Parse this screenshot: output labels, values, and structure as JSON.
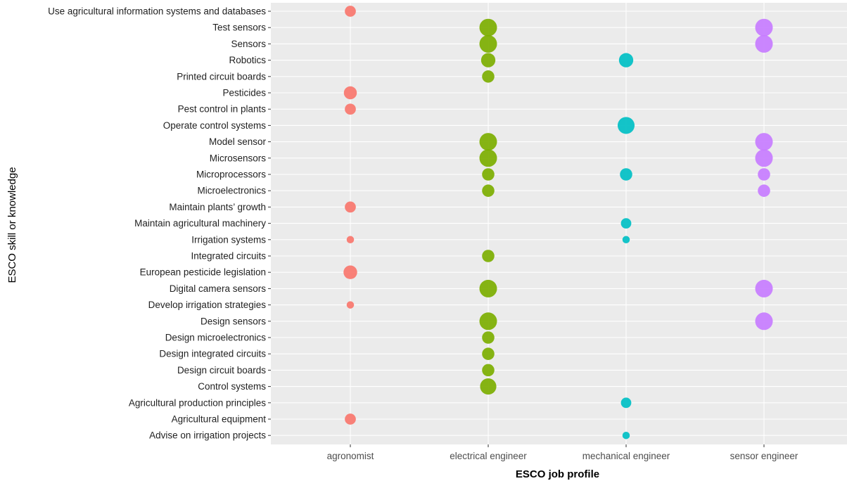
{
  "chart_data": {
    "type": "scatter",
    "title": "",
    "xlabel": "ESCO job profile",
    "ylabel": "ESCO skill or knowledge",
    "grid": true,
    "x_categories": [
      "agronomist",
      "electrical engineer",
      "mechanical engineer",
      "sensor engineer"
    ],
    "y_categories": [
      "Use agricultural information systems and databases",
      "Test sensors",
      "Sensors",
      "Robotics",
      "Printed circuit boards",
      "Pesticides",
      "Pest control in plants",
      "Operate control systems",
      "Model sensor",
      "Microsensors",
      "Microprocessors",
      "Microelectronics",
      "Maintain plants’ growth",
      "Maintain agricultural machinery",
      "Irrigation systems",
      "Integrated circuits",
      "European pesticide legislation",
      "Digital camera sensors",
      "Develop irrigation strategies",
      "Design sensors",
      "Design microelectronics",
      "Design integrated circuits",
      "Design circuit boards",
      "Control systems",
      "Agricultural production principles",
      "Agricultural equipment",
      "Advise on irrigation projects"
    ],
    "series_colors": {
      "agronomist": "#F8766D",
      "electrical engineer": "#7CAE00",
      "mechanical engineer": "#00BFC4",
      "sensor engineer": "#C77CFF"
    },
    "points": [
      {
        "y": "Use agricultural information systems and databases",
        "x": "agronomist",
        "size": 0.5
      },
      {
        "y": "Test sensors",
        "x": "electrical engineer",
        "size": 1.0
      },
      {
        "y": "Test sensors",
        "x": "sensor engineer",
        "size": 1.0
      },
      {
        "y": "Sensors",
        "x": "electrical engineer",
        "size": 1.0
      },
      {
        "y": "Sensors",
        "x": "sensor engineer",
        "size": 1.0
      },
      {
        "y": "Robotics",
        "x": "electrical engineer",
        "size": 0.75
      },
      {
        "y": "Robotics",
        "x": "mechanical engineer",
        "size": 0.75
      },
      {
        "y": "Printed circuit boards",
        "x": "electrical engineer",
        "size": 0.6
      },
      {
        "y": "Pesticides",
        "x": "agronomist",
        "size": 0.65
      },
      {
        "y": "Pest control in plants",
        "x": "agronomist",
        "size": 0.5
      },
      {
        "y": "Operate control systems",
        "x": "mechanical engineer",
        "size": 0.95
      },
      {
        "y": "Model sensor",
        "x": "electrical engineer",
        "size": 1.0
      },
      {
        "y": "Model sensor",
        "x": "sensor engineer",
        "size": 1.0
      },
      {
        "y": "Microsensors",
        "x": "electrical engineer",
        "size": 1.0
      },
      {
        "y": "Microsensors",
        "x": "sensor engineer",
        "size": 1.0
      },
      {
        "y": "Microprocessors",
        "x": "electrical engineer",
        "size": 0.6
      },
      {
        "y": "Microprocessors",
        "x": "mechanical engineer",
        "size": 0.6
      },
      {
        "y": "Microprocessors",
        "x": "sensor engineer",
        "size": 0.6
      },
      {
        "y": "Microelectronics",
        "x": "electrical engineer",
        "size": 0.6
      },
      {
        "y": "Microelectronics",
        "x": "sensor engineer",
        "size": 0.6
      },
      {
        "y": "Maintain plants’ growth",
        "x": "agronomist",
        "size": 0.5
      },
      {
        "y": "Maintain agricultural machinery",
        "x": "mechanical engineer",
        "size": 0.45
      },
      {
        "y": "Irrigation systems",
        "x": "agronomist",
        "size": 0.22
      },
      {
        "y": "Irrigation systems",
        "x": "mechanical engineer",
        "size": 0.22
      },
      {
        "y": "Integrated circuits",
        "x": "electrical engineer",
        "size": 0.6
      },
      {
        "y": "European pesticide legislation",
        "x": "agronomist",
        "size": 0.7
      },
      {
        "y": "Digital camera sensors",
        "x": "electrical engineer",
        "size": 1.0
      },
      {
        "y": "Digital camera sensors",
        "x": "sensor engineer",
        "size": 1.0
      },
      {
        "y": "Develop irrigation strategies",
        "x": "agronomist",
        "size": 0.22
      },
      {
        "y": "Design sensors",
        "x": "electrical engineer",
        "size": 1.0
      },
      {
        "y": "Design sensors",
        "x": "sensor engineer",
        "size": 1.0
      },
      {
        "y": "Design microelectronics",
        "x": "electrical engineer",
        "size": 0.6
      },
      {
        "y": "Design integrated circuits",
        "x": "electrical engineer",
        "size": 0.6
      },
      {
        "y": "Design circuit boards",
        "x": "electrical engineer",
        "size": 0.6
      },
      {
        "y": "Control systems",
        "x": "electrical engineer",
        "size": 0.9
      },
      {
        "y": "Agricultural production principles",
        "x": "mechanical engineer",
        "size": 0.45
      },
      {
        "y": "Agricultural equipment",
        "x": "agronomist",
        "size": 0.5
      },
      {
        "y": "Advise on irrigation projects",
        "x": "mechanical engineer",
        "size": 0.22
      }
    ]
  }
}
